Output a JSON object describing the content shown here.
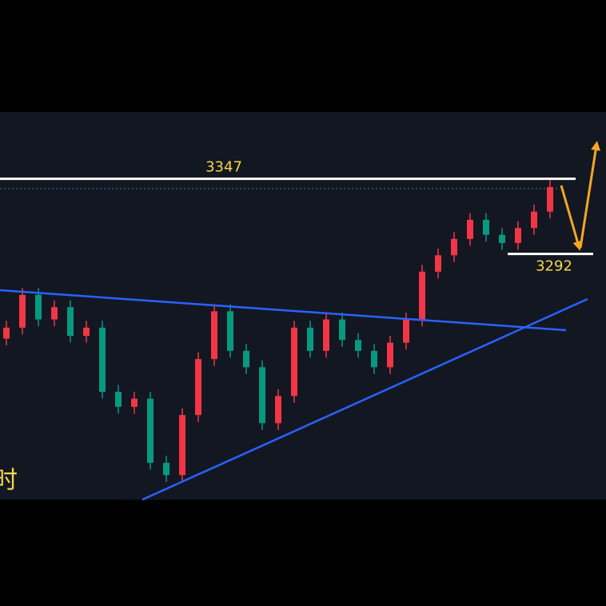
{
  "chart_data": {
    "type": "candlestick",
    "caption": "时",
    "levels": [
      3347,
      3292
    ],
    "ylim": [
      3112,
      3396
    ],
    "up_color": "#f23645",
    "down_color": "#089981",
    "level_color": "#ffffff",
    "label_color": "#f5d64a",
    "open": [
      3230,
      3238,
      3262,
      3244,
      3253,
      3232,
      3238,
      3191,
      3180,
      3186,
      3139,
      3130,
      3174,
      3215,
      3250,
      3221,
      3209,
      3168,
      3188,
      3238,
      3221,
      3244,
      3229,
      3221,
      3209,
      3227,
      3244,
      3279,
      3291,
      3303,
      3317,
      3306,
      3300,
      3311,
      3323
    ],
    "high": [
      3243,
      3267,
      3267,
      3258,
      3258,
      3243,
      3243,
      3196,
      3191,
      3191,
      3144,
      3179,
      3220,
      3255,
      3255,
      3226,
      3214,
      3193,
      3243,
      3243,
      3249,
      3249,
      3234,
      3226,
      3232,
      3249,
      3284,
      3296,
      3308,
      3322,
      3322,
      3311,
      3316,
      3328,
      3346
    ],
    "low": [
      3225,
      3233,
      3239,
      3239,
      3227,
      3227,
      3186,
      3175,
      3175,
      3134,
      3125,
      3125,
      3169,
      3210,
      3216,
      3204,
      3163,
      3163,
      3183,
      3216,
      3216,
      3224,
      3216,
      3204,
      3204,
      3222,
      3239,
      3274,
      3286,
      3298,
      3301,
      3295,
      3295,
      3306,
      3318
    ],
    "close": [
      3238,
      3262,
      3244,
      3253,
      3232,
      3238,
      3191,
      3180,
      3186,
      3139,
      3130,
      3174,
      3215,
      3250,
      3221,
      3209,
      3168,
      3188,
      3238,
      3221,
      3244,
      3229,
      3221,
      3209,
      3227,
      3244,
      3279,
      3291,
      3303,
      3317,
      3306,
      3300,
      3311,
      3323,
      3341
    ]
  }
}
